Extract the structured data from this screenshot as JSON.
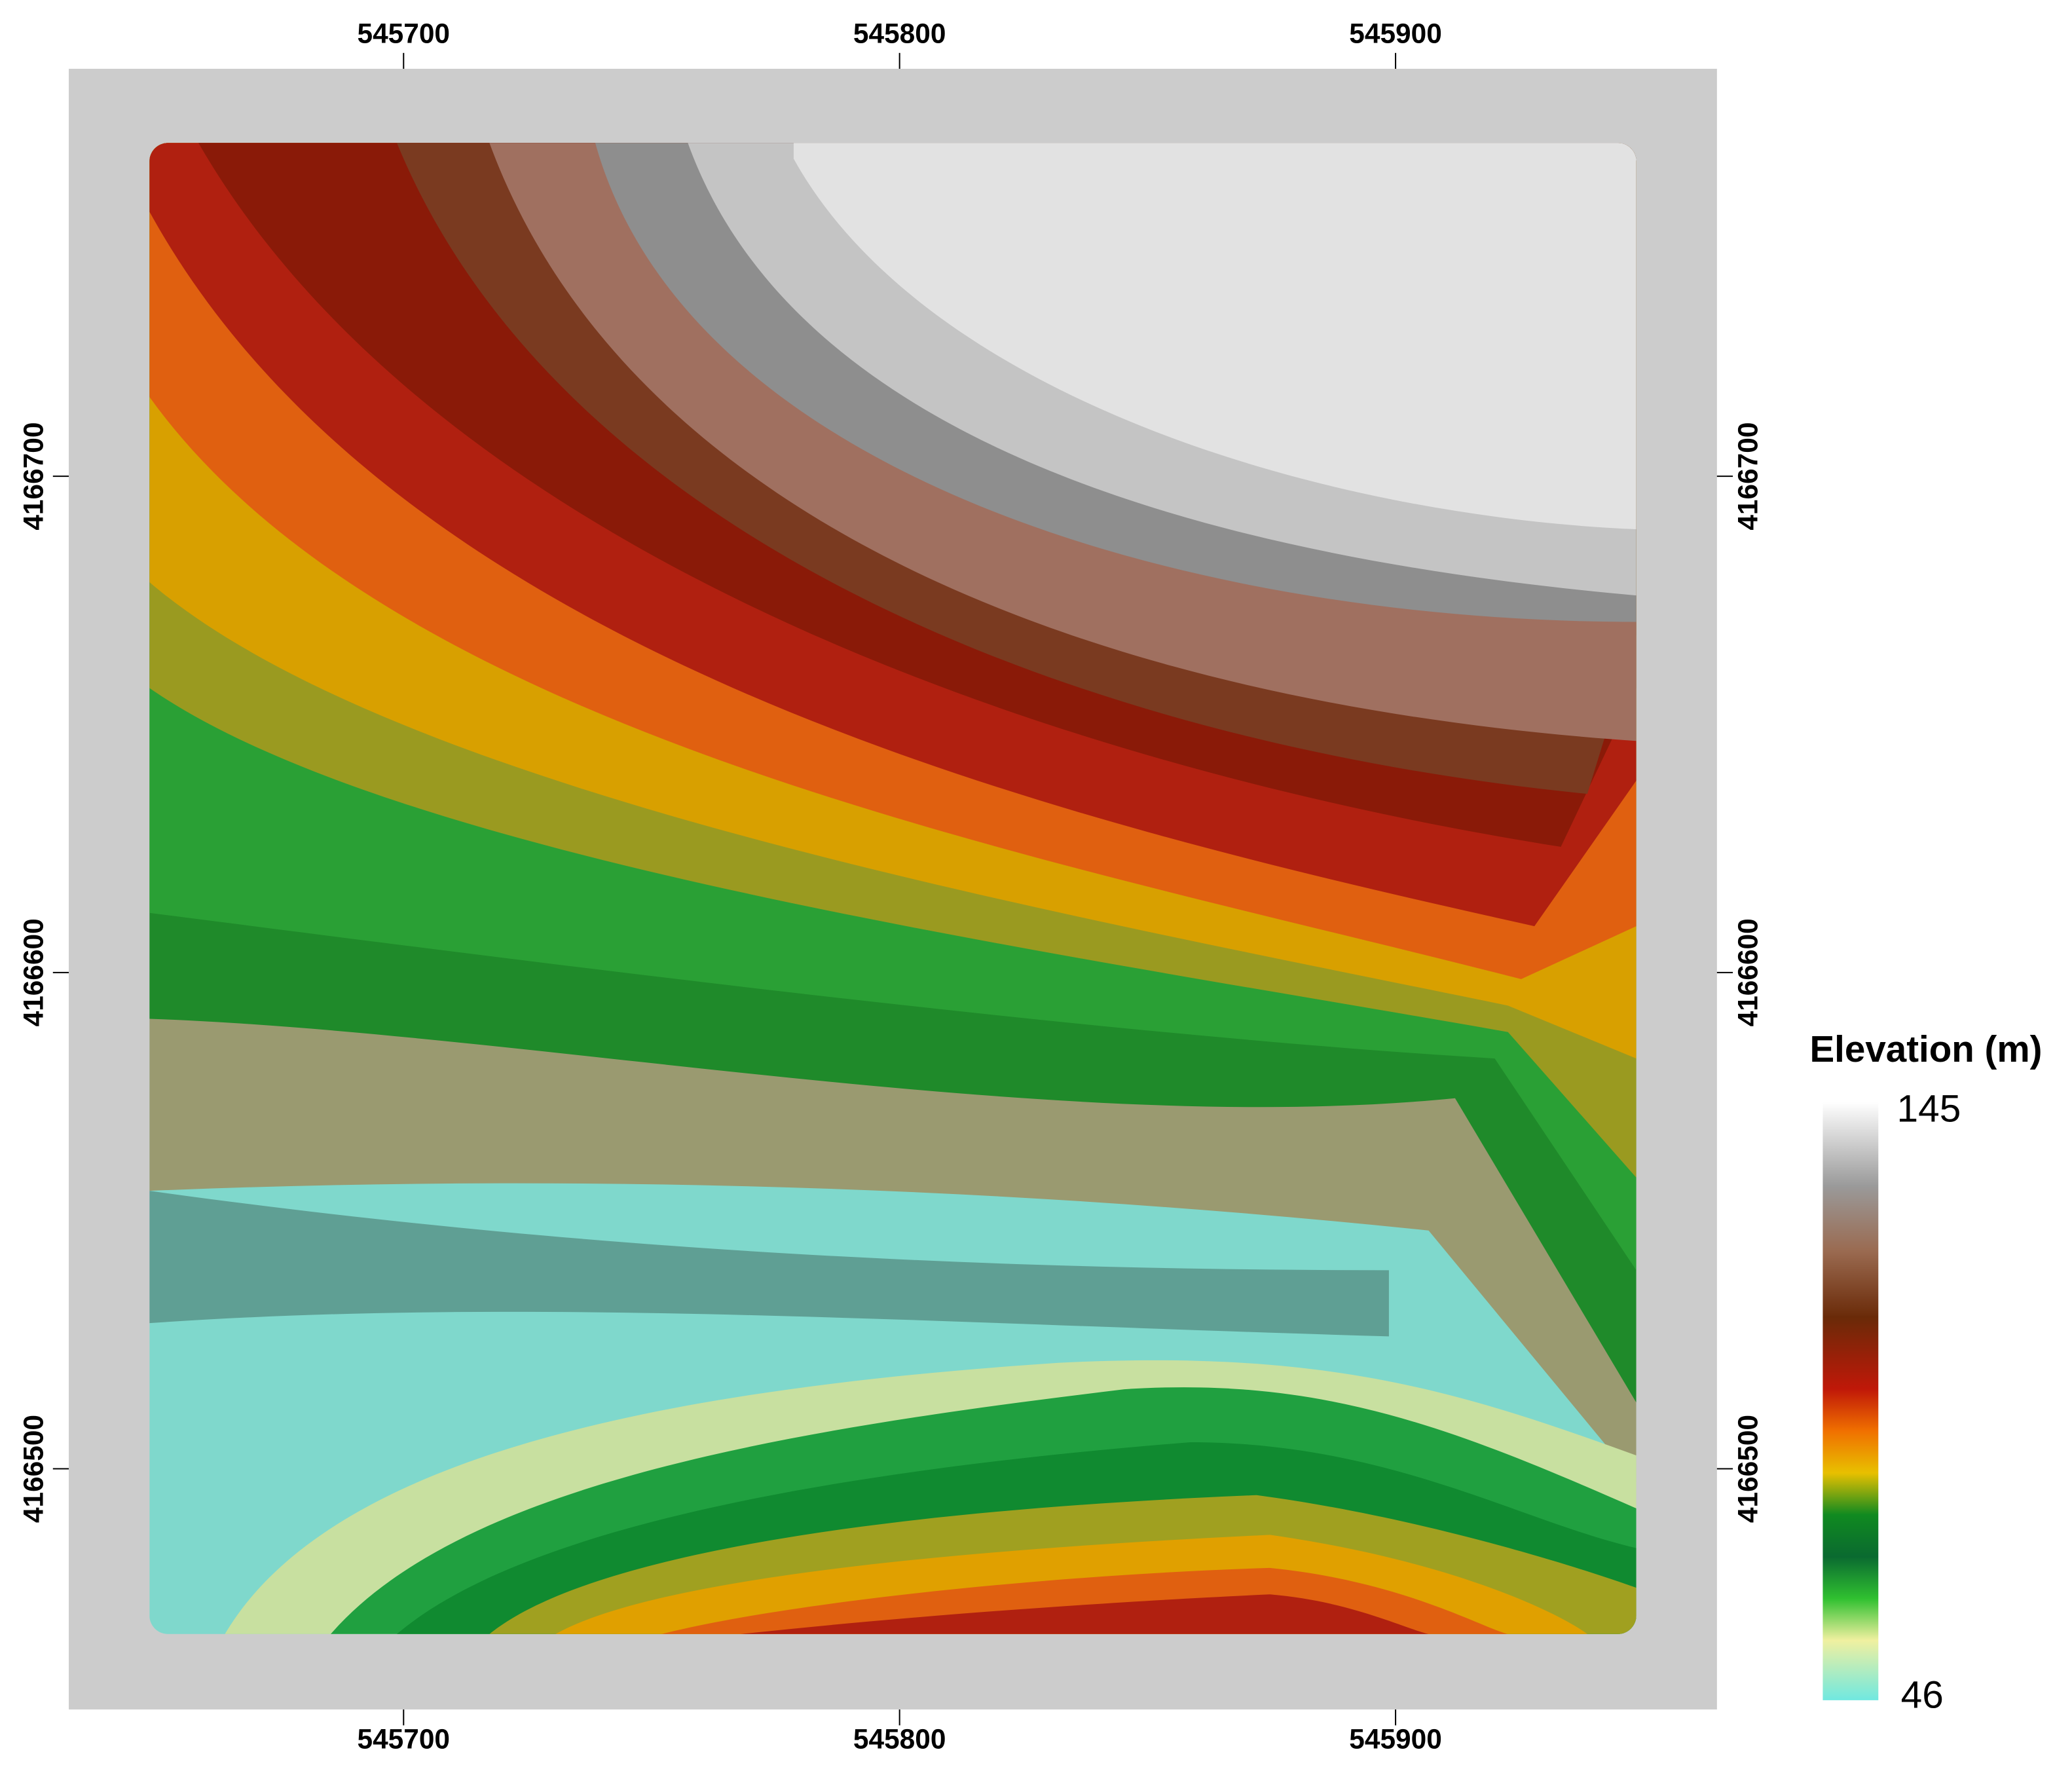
{
  "map": {
    "xticks": [
      545700,
      545800,
      545900
    ],
    "yticks": [
      4166700,
      4166600,
      4166500
    ],
    "xlim": [
      545632.5,
      545964.8
    ],
    "ylim": [
      4166451.5,
      4166782.1
    ],
    "legend": {
      "title": "Elevation (m)",
      "max": 145,
      "min": 46
    }
  }
}
